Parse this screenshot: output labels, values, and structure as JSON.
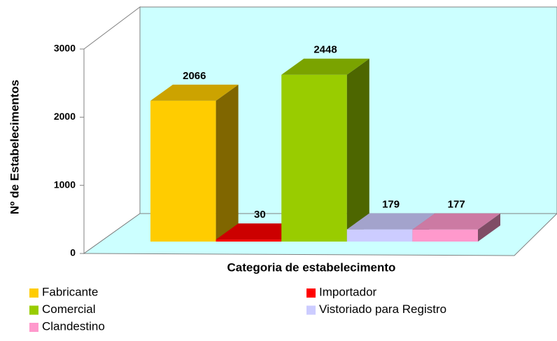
{
  "chart_data": {
    "type": "bar3d",
    "x_label": "Categoria de estabelecimento",
    "y_label": "Nº de Estabelecimentos",
    "categories": [
      "Fabricante",
      "Importador",
      "Comercial",
      "Vistoriado para Registro",
      "Clandestino"
    ],
    "values": [
      2066,
      30,
      2448,
      179,
      177
    ],
    "colors": [
      "#FFCC00",
      "#FF0000",
      "#99CC00",
      "#CCCCFF",
      "#FF99CC"
    ],
    "ylim": [
      0,
      3000
    ],
    "yticks": [
      0,
      1000,
      2000,
      3000
    ],
    "legend": "bottom"
  }
}
